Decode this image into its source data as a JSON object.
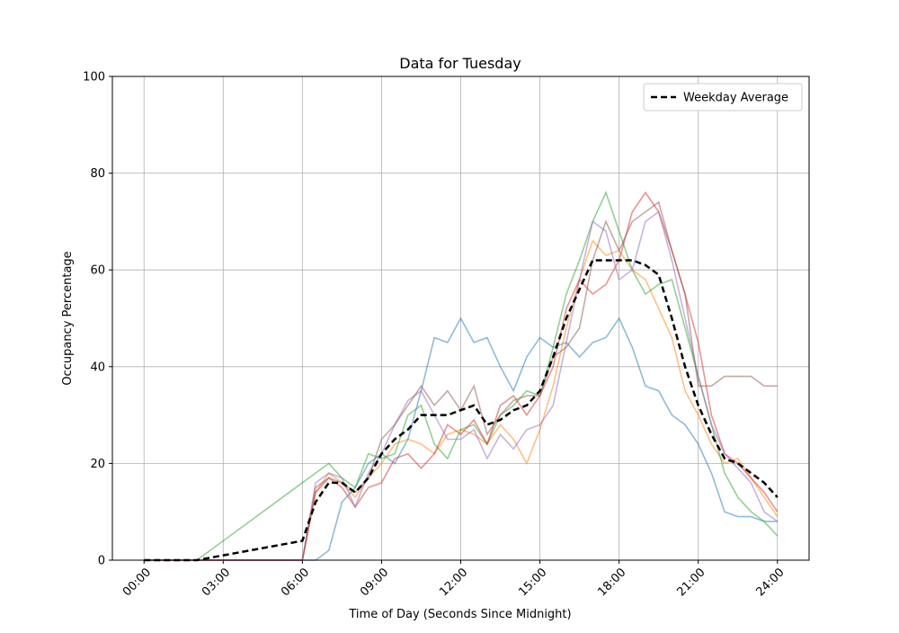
{
  "chart_data": {
    "type": "line",
    "title": "Data for Tuesday",
    "xlabel": "Time of Day (Seconds Since Midnight)",
    "ylabel": "Occupancy Percentage",
    "x": [
      0,
      1800,
      3600,
      5400,
      7200,
      9000,
      10800,
      12600,
      14400,
      16200,
      18000,
      19800,
      21600,
      23400,
      25200,
      27000,
      28800,
      30600,
      32400,
      34200,
      36000,
      37800,
      39600,
      41400,
      43200,
      45000,
      46800,
      48600,
      50400,
      52200,
      54000,
      55800,
      57600,
      59400,
      61200,
      63000,
      64800,
      66600,
      68400,
      70200,
      72000,
      73800,
      75600,
      77400,
      79200,
      81000,
      82800,
      84600,
      86400
    ],
    "xlim": [
      -4320,
      90720
    ],
    "ylim": [
      0,
      100
    ],
    "xticks": [
      {
        "value": 0,
        "label": "00:00"
      },
      {
        "value": 10800,
        "label": "03:00"
      },
      {
        "value": 21600,
        "label": "06:00"
      },
      {
        "value": 32400,
        "label": "09:00"
      },
      {
        "value": 43200,
        "label": "12:00"
      },
      {
        "value": 54000,
        "label": "15:00"
      },
      {
        "value": 64800,
        "label": "18:00"
      },
      {
        "value": 75600,
        "label": "21:00"
      },
      {
        "value": 86400,
        "label": "24:00"
      }
    ],
    "yticks": [
      0,
      20,
      40,
      60,
      80,
      100
    ],
    "grid": true,
    "legend": "upper right",
    "series": [
      {
        "color": "#1f77b4",
        "values": [
          0,
          0,
          0,
          0,
          0,
          0,
          0,
          0,
          0,
          0,
          0,
          0,
          0,
          0,
          2,
          12,
          15,
          20,
          22,
          20,
          25,
          35,
          46,
          45,
          50,
          45,
          46,
          40,
          35,
          42,
          46,
          44,
          45,
          42,
          45,
          46,
          50,
          44,
          36,
          35,
          30,
          28,
          24,
          18,
          10,
          9,
          9,
          8,
          8
        ]
      },
      {
        "color": "#ff7f0e",
        "values": [
          0,
          0,
          0,
          0,
          0,
          0,
          0,
          0,
          0,
          0,
          0,
          0,
          0,
          14,
          18,
          16,
          13,
          17,
          20,
          24,
          25,
          24,
          22,
          26,
          27,
          26,
          24,
          28,
          25,
          20,
          27,
          36,
          48,
          58,
          66,
          63,
          64,
          60,
          58,
          52,
          46,
          35,
          30,
          24,
          20,
          21,
          17,
          13,
          9
        ]
      },
      {
        "color": "#2ca02c",
        "values": [
          0,
          0,
          0,
          0,
          0,
          2,
          4,
          6,
          8,
          10,
          12,
          14,
          16,
          18,
          20,
          17,
          15,
          22,
          21,
          22,
          30,
          32,
          24,
          21,
          27,
          28,
          24,
          30,
          32,
          35,
          34,
          44,
          55,
          62,
          70,
          76,
          68,
          60,
          55,
          57,
          58,
          48,
          38,
          28,
          18,
          13,
          10,
          8,
          5
        ]
      },
      {
        "color": "#d62728",
        "values": [
          0,
          0,
          0,
          0,
          0,
          0,
          0,
          0,
          0,
          0,
          0,
          0,
          0,
          14,
          17,
          15,
          11,
          15,
          16,
          21,
          22,
          19,
          22,
          28,
          26,
          29,
          24,
          32,
          34,
          30,
          34,
          40,
          52,
          58,
          55,
          57,
          62,
          72,
          76,
          72,
          64,
          55,
          45,
          30,
          22,
          20,
          17,
          14,
          10
        ]
      },
      {
        "color": "#9467bd",
        "values": [
          0,
          0,
          0,
          0,
          0,
          0,
          0,
          0,
          0,
          0,
          0,
          0,
          0,
          16,
          18,
          17,
          11,
          18,
          22,
          28,
          33,
          35,
          30,
          25,
          25,
          27,
          21,
          26,
          23,
          27,
          28,
          32,
          45,
          58,
          70,
          68,
          58,
          60,
          70,
          72,
          62,
          50,
          38,
          28,
          22,
          19,
          16,
          10,
          8
        ]
      },
      {
        "color": "#8c564b",
        "values": [
          0,
          0,
          0,
          0,
          0,
          0,
          0,
          0,
          0,
          0,
          0,
          0,
          0,
          15,
          17,
          16,
          14,
          17,
          25,
          28,
          32,
          36,
          32,
          35,
          31,
          36,
          26,
          30,
          33,
          34,
          34,
          42,
          44,
          48,
          62,
          70,
          64,
          70,
          72,
          74,
          64,
          55,
          36,
          36,
          38,
          38,
          38,
          36,
          36
        ]
      },
      {
        "name": "Weekday Average",
        "color": "#000000",
        "dashed": true,
        "values": [
          0,
          0,
          0,
          0,
          0,
          0.5,
          1,
          1.5,
          2,
          2.5,
          3,
          3.5,
          4,
          12,
          16,
          16,
          14,
          17,
          22,
          25,
          27,
          30,
          30,
          30,
          31,
          32,
          28,
          29,
          31,
          32,
          35,
          42,
          50,
          56,
          62,
          62,
          62,
          62,
          61,
          59,
          50,
          40,
          32,
          26,
          21,
          20,
          18,
          16,
          13
        ]
      }
    ]
  }
}
